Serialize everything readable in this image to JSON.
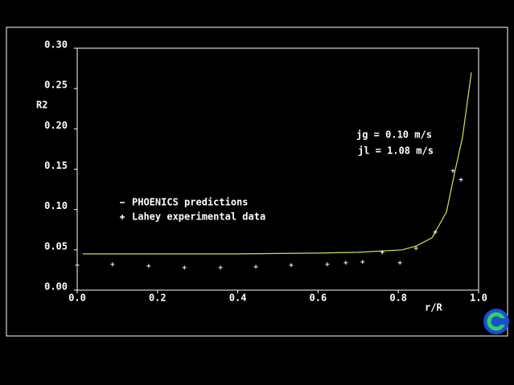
{
  "chart_data": {
    "type": "line",
    "y_label": "R2",
    "x_label": "r/R",
    "annotations": [
      "jg = 0.10 m/s",
      "jl = 1.08 m/s"
    ],
    "xlim": [
      0,
      1
    ],
    "ylim": [
      0,
      0.3
    ],
    "xticks": [
      {
        "value": 0,
        "label": "0.0"
      },
      {
        "value": 0.2,
        "label": "0.2"
      },
      {
        "value": 0.4,
        "label": "0.4"
      },
      {
        "value": 0.6,
        "label": "0.6"
      },
      {
        "value": 0.8,
        "label": "0.8"
      },
      {
        "value": 1,
        "label": "1.0"
      }
    ],
    "yticks": [
      {
        "value": 0,
        "label": "0.00"
      },
      {
        "value": 0.05,
        "label": "0.05"
      },
      {
        "value": 0.1,
        "label": "0.10"
      },
      {
        "value": 0.15,
        "label": "0.15"
      },
      {
        "value": 0.2,
        "label": "0.20"
      },
      {
        "value": 0.25,
        "label": "0.25"
      },
      {
        "value": 0.3,
        "label": "0.30"
      }
    ],
    "series": [
      {
        "name": "PHOENICS predictions",
        "style": "line",
        "color": "#c8e650",
        "x": [
          0.014,
          0.2,
          0.4,
          0.6,
          0.7,
          0.81,
          0.846,
          0.884,
          0.92,
          0.94,
          0.96,
          0.982
        ],
        "values": [
          0.045,
          0.045,
          0.045,
          0.046,
          0.047,
          0.05,
          0.055,
          0.065,
          0.097,
          0.145,
          0.19,
          0.27
        ]
      },
      {
        "name": "Lahey experimental data",
        "style": "cross",
        "color": "#ffffff",
        "x": [
          0.0,
          0.088,
          0.178,
          0.267,
          0.357,
          0.445,
          0.533,
          0.623,
          0.669,
          0.711,
          0.76,
          0.804,
          0.844,
          0.892,
          0.936,
          0.956
        ],
        "values": [
          0.031,
          0.032,
          0.03,
          0.028,
          0.028,
          0.029,
          0.031,
          0.032,
          0.034,
          0.035,
          0.047,
          0.034,
          0.052,
          0.072,
          0.148,
          0.137
        ]
      }
    ]
  }
}
